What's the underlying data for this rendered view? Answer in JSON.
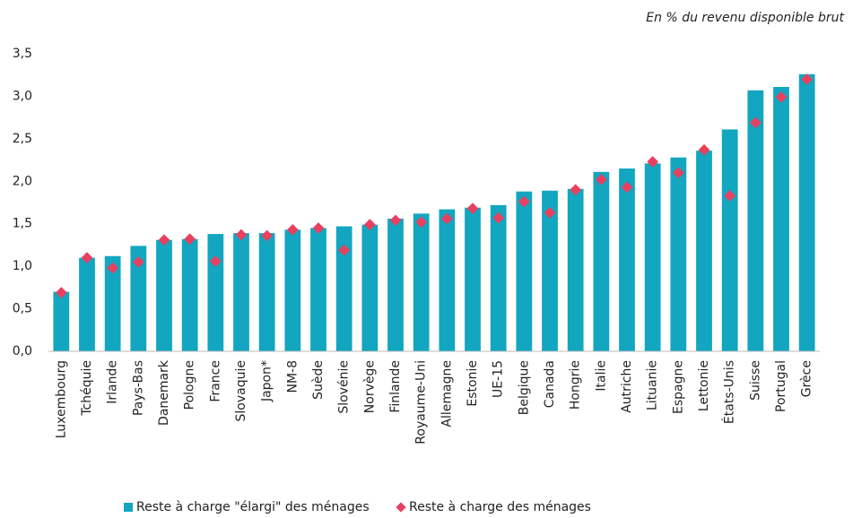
{
  "chart_data": {
    "type": "bar",
    "subtitle": "En % du revenu disponible brut",
    "categories": [
      "Luxembourg",
      "Tchéquie",
      "Irlande",
      "Pays-Bas",
      "Danemark",
      "Pologne",
      "France",
      "Slovaquie",
      "Japon*",
      "NM-8",
      "Suède",
      "Slovénie",
      "Norvège",
      "Finlande",
      "Royaume-Uni",
      "Allemagne",
      "Estonie",
      "UE-15",
      "Belgique",
      "Canada",
      "Hongrie",
      "Italie",
      "Autriche",
      "Lituanie",
      "Espagne",
      "Lettonie",
      "États-Unis",
      "Suisse",
      "Portugal",
      "Grèce"
    ],
    "series": [
      {
        "name": "Reste à charge \"élargi\" des ménages",
        "color": "#12a6c0",
        "marker": "bar",
        "values": [
          0.7,
          1.1,
          1.12,
          1.24,
          1.31,
          1.32,
          1.38,
          1.39,
          1.39,
          1.43,
          1.45,
          1.47,
          1.49,
          1.56,
          1.62,
          1.67,
          1.69,
          1.72,
          1.88,
          1.89,
          1.91,
          2.11,
          2.15,
          2.21,
          2.28,
          2.36,
          2.61,
          3.07,
          3.11,
          3.26
        ]
      },
      {
        "name": "Reste à charge des ménages",
        "color": "#e8405f",
        "marker": "diamond",
        "values": [
          0.69,
          1.1,
          0.98,
          1.05,
          1.31,
          1.32,
          1.06,
          1.37,
          1.36,
          1.43,
          1.45,
          1.19,
          1.49,
          1.54,
          1.52,
          1.56,
          1.68,
          1.57,
          1.76,
          1.63,
          1.9,
          2.02,
          1.93,
          2.23,
          2.1,
          2.37,
          1.83,
          2.69,
          2.99,
          3.2
        ]
      }
    ],
    "ylim": [
      0,
      3.5
    ],
    "yticks": [
      {
        "value": 0,
        "label": "0,0"
      },
      {
        "value": 0.5,
        "label": "0,5"
      },
      {
        "value": 1,
        "label": "1,0"
      },
      {
        "value": 1.5,
        "label": "1,5"
      },
      {
        "value": 2,
        "label": "2,0"
      },
      {
        "value": 2.5,
        "label": "2,5"
      },
      {
        "value": 3,
        "label": "3,0"
      },
      {
        "value": 3.5,
        "label": "3,5"
      }
    ],
    "grid": false,
    "legend": "bottom"
  }
}
